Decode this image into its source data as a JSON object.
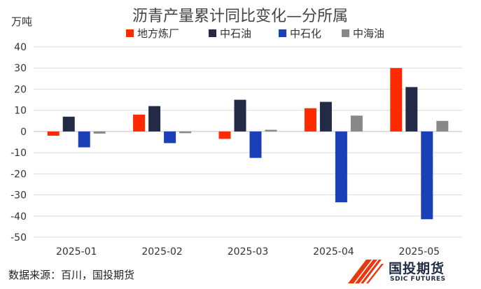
{
  "chart_data": {
    "type": "bar",
    "title": "沥青产量累计同比变化—分所属",
    "ylabel": "万吨",
    "xlabel": "",
    "categories": [
      "2025-01",
      "2025-02",
      "2025-03",
      "2025-04",
      "2025-05"
    ],
    "ylim": [
      -50,
      40
    ],
    "yticks": [
      40,
      30,
      20,
      10,
      0,
      -10,
      -20,
      -30,
      -40,
      -50
    ],
    "grid": true,
    "legend_position": "top",
    "series": [
      {
        "name": "地方炼厂",
        "color": "#ff2a00",
        "values": [
          -2,
          8,
          -3.5,
          11,
          30
        ]
      },
      {
        "name": "中石油",
        "color": "#222a45",
        "values": [
          7,
          12,
          15,
          14,
          21
        ]
      },
      {
        "name": "中石化",
        "color": "#1a40b8",
        "values": [
          -7.5,
          -5.5,
          -12.5,
          -33.5,
          -41.5
        ]
      },
      {
        "name": "中海油",
        "color": "#888888",
        "values": [
          -1,
          -0.8,
          0.8,
          7.5,
          5
        ]
      }
    ]
  },
  "footer": {
    "source": "数据来源：百川，国投期货"
  },
  "logo": {
    "name_cn": "国投期货",
    "name_en": "SDIC FUTURES"
  }
}
